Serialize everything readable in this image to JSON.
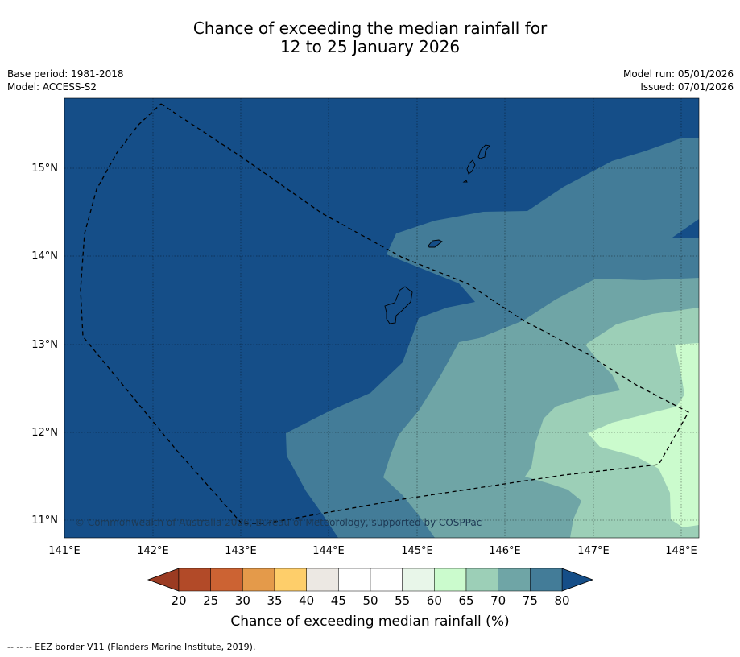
{
  "title": {
    "line1": "Chance of exceeding the median rainfall for",
    "line2": "12 to 25 January 2026"
  },
  "meta": {
    "base_period": "Base period: 1981-2018",
    "model": "Model: ACCESS-S2",
    "model_run": "Model run: 05/01/2026",
    "issued": "Issued: 07/01/2026"
  },
  "axes": {
    "lon_ticks": [
      "141°E",
      "142°E",
      "143°E",
      "144°E",
      "145°E",
      "146°E",
      "147°E",
      "148°E"
    ],
    "lat_ticks": [
      "15°N",
      "14°N",
      "13°N",
      "12°N",
      "11°N"
    ]
  },
  "copyright": "© Commonwealth of Australia 2026, Bureau of Meteorology, supported by COSPPac",
  "colorbar": {
    "labels": [
      "20",
      "25",
      "30",
      "35",
      "40",
      "45",
      "50",
      "55",
      "60",
      "65",
      "70",
      "75",
      "80"
    ],
    "colors": [
      "#b24a28",
      "#cc6333",
      "#e49a4a",
      "#fece6a",
      "#ece8e3",
      "#ffffff",
      "#ffffff",
      "#e8f6e9",
      "#cbfbcd",
      "#9ccfb7",
      "#6fa5a6",
      "#437c98"
    ],
    "under_color": "#9b3b22",
    "over_color": "#154e88",
    "title": "Chance of exceeding median rainfall (%)"
  },
  "footnote": "--  --  -- EEZ border V11 (Flanders Marine Institute, 2019)."
}
